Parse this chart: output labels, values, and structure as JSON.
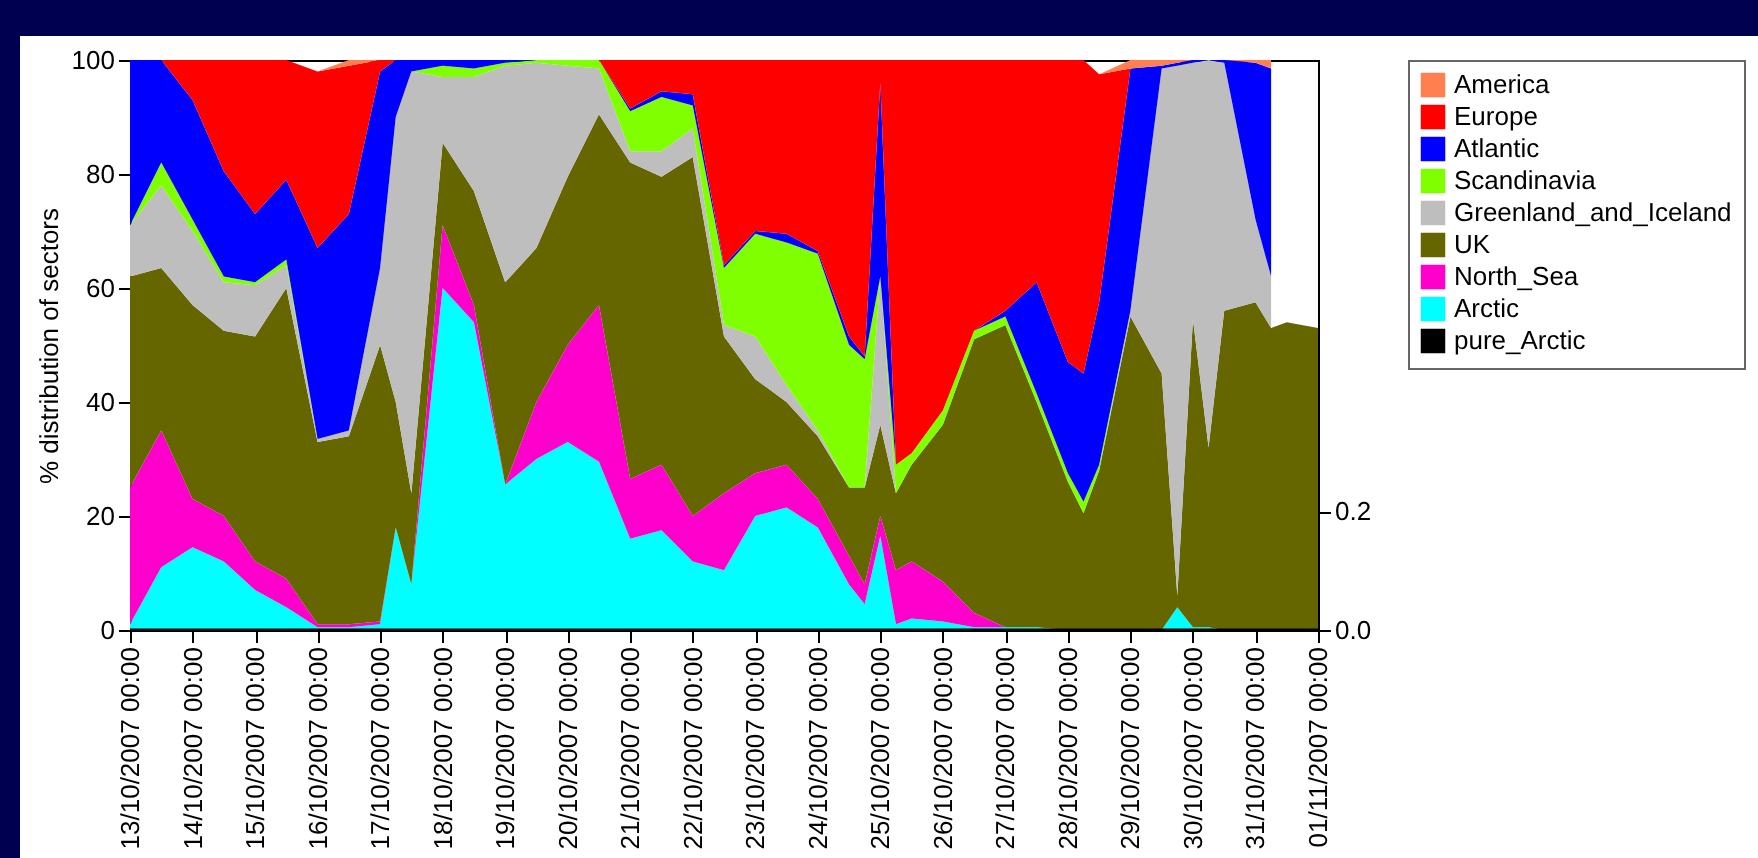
{
  "chart_data": {
    "type": "area",
    "stacked": true,
    "ylabel": "% distribution of sectors",
    "legend": "right",
    "x": [
      "2007-10-13",
      "2007-10-13T12:00",
      "2007-10-14",
      "2007-10-14T12:00",
      "2007-10-15",
      "2007-10-15T12:00",
      "2007-10-16",
      "2007-10-16T12:00",
      "2007-10-17",
      "2007-10-17T06:00",
      "2007-10-17T12:00",
      "2007-10-18",
      "2007-10-18T12:00",
      "2007-10-19",
      "2007-10-19T12:00",
      "2007-10-20",
      "2007-10-20T12:00",
      "2007-10-21",
      "2007-10-21T12:00",
      "2007-10-22",
      "2007-10-22T12:00",
      "2007-10-23",
      "2007-10-23T12:00",
      "2007-10-24",
      "2007-10-24T12:00",
      "2007-10-24T18:00",
      "2007-10-25",
      "2007-10-25T06:00",
      "2007-10-25T12:00",
      "2007-10-26",
      "2007-10-26T12:00",
      "2007-10-27",
      "2007-10-27T12:00",
      "2007-10-28",
      "2007-10-28T06:00",
      "2007-10-28T12:00",
      "2007-10-29",
      "2007-10-29T12:00",
      "2007-10-29T18:00",
      "2007-10-30",
      "2007-10-30T06:00",
      "2007-10-30T12:00",
      "2007-10-31",
      "2007-10-31T06:00",
      "2007-10-31T12:00",
      "2007-11-01"
    ],
    "series": [
      {
        "name": "Arctic",
        "type": "area",
        "color": "#00ffff",
        "values": [
          1,
          11,
          14.5,
          12,
          7,
          4,
          0.5,
          0.5,
          1,
          18,
          8,
          60,
          54,
          25.5,
          30,
          33,
          29.5,
          16,
          17.5,
          12,
          10.5,
          20,
          21.5,
          18,
          8,
          4.5,
          16.5,
          1,
          2,
          1.5,
          0.5,
          0.5,
          0.5,
          0,
          0,
          0,
          0,
          0,
          4,
          0.5,
          0.5,
          0,
          0,
          0,
          0,
          0
        ]
      },
      {
        "name": "North_Sea",
        "type": "area",
        "color": "#ff00cc",
        "values": [
          24,
          24,
          8.5,
          8,
          5,
          5,
          0.5,
          0.5,
          0.5,
          0,
          0,
          11,
          3,
          0,
          10,
          17,
          27.5,
          10.5,
          11.5,
          8,
          13.5,
          7.5,
          7.5,
          5,
          5,
          3.5,
          3.5,
          9.5,
          10,
          7,
          2.5,
          0,
          0,
          0,
          0,
          0,
          0,
          0,
          0,
          0,
          0,
          0,
          0,
          0,
          0,
          0
        ]
      },
      {
        "name": "UK",
        "type": "area",
        "color": "#666600",
        "values": [
          37,
          28.5,
          34,
          32.5,
          39.5,
          51,
          32,
          33,
          48.5,
          22,
          16,
          14.5,
          20,
          35.5,
          27,
          29.5,
          33.5,
          55.5,
          50.5,
          63,
          27.5,
          16.5,
          11,
          11,
          12,
          17,
          16,
          13.5,
          17,
          27.5,
          48,
          53,
          39.5,
          26,
          20.5,
          28,
          55,
          45,
          2,
          54,
          31.5,
          56,
          57.5,
          53,
          54,
          53
        ]
      },
      {
        "name": "Greenland_and_Iceland",
        "type": "area",
        "color": "#bebebe",
        "values": [
          9,
          14.5,
          13,
          8.5,
          9,
          4,
          0.5,
          1,
          13.5,
          50,
          74,
          11.5,
          20,
          38,
          32.5,
          19.5,
          8,
          2,
          4.5,
          5,
          2,
          7.5,
          3,
          1,
          0,
          0,
          26,
          0,
          0,
          0,
          0,
          0,
          0,
          0,
          0,
          0,
          1,
          53.5,
          93,
          45,
          68,
          43.5,
          14.5,
          9,
          null,
          null
        ]
      },
      {
        "name": "Scandinavia",
        "type": "area",
        "color": "#80ff00",
        "values": [
          0,
          4,
          2,
          1,
          0.5,
          1,
          0,
          0,
          0,
          0,
          0,
          2,
          1.5,
          0.5,
          0.5,
          1,
          1.5,
          7,
          9.5,
          4,
          10,
          18,
          25,
          31,
          25,
          22.5,
          0,
          5,
          2,
          2.5,
          1.5,
          1.5,
          1.5,
          1.5,
          2,
          1,
          0,
          0,
          0,
          0,
          0,
          0,
          0,
          0,
          null,
          null
        ]
      },
      {
        "name": "Atlantic",
        "type": "area",
        "color": "#0000ff",
        "values": [
          29,
          18,
          21,
          18.5,
          12,
          14,
          33.5,
          38,
          34.5,
          10,
          2,
          1,
          1.5,
          0.5,
          0,
          0,
          0,
          0.5,
          1,
          2,
          0.5,
          0.5,
          1.5,
          0.5,
          1.5,
          0.5,
          34,
          0,
          0,
          0,
          0,
          1,
          19.5,
          19.5,
          22.5,
          28.5,
          42.5,
          0.5,
          0.5,
          0.5,
          0,
          0.5,
          27.5,
          36.5,
          null,
          null
        ]
      },
      {
        "name": "Europe",
        "type": "area",
        "color": "#ff0000",
        "values": [
          0,
          0,
          7,
          19.5,
          27,
          21,
          31,
          26,
          2,
          0,
          0,
          0,
          0,
          0,
          0,
          0,
          0,
          8.5,
          5.5,
          6,
          36,
          30,
          30.5,
          33.5,
          48.5,
          52,
          4,
          71,
          69,
          61.5,
          47.5,
          44,
          39,
          53,
          55,
          40,
          0,
          0,
          0,
          0,
          0,
          0,
          0,
          0,
          null,
          null
        ]
      },
      {
        "name": "America",
        "type": "area",
        "color": "#ff7f50",
        "values": [
          0,
          0,
          0,
          0,
          0,
          0,
          0,
          1,
          0,
          0,
          0,
          0,
          0,
          0,
          0,
          0,
          0,
          0,
          0,
          0,
          0,
          0,
          0,
          0,
          0,
          0,
          0,
          0,
          0,
          0,
          0,
          0,
          0,
          0,
          0,
          0,
          1.5,
          1,
          0.5,
          0,
          0,
          0,
          0.5,
          1.5,
          null,
          null
        ]
      },
      {
        "name": "pure_Arctic",
        "type": "line",
        "axis": "y2",
        "color": "#000000",
        "values": [
          0,
          0,
          0,
          0,
          0,
          0,
          0,
          0,
          0,
          0,
          0,
          0,
          0,
          0,
          0,
          0,
          0,
          0,
          0,
          0,
          0,
          0,
          0,
          0,
          0,
          0,
          0,
          0,
          0,
          0,
          0,
          0,
          0,
          0,
          0,
          0,
          0,
          0,
          0,
          0,
          0,
          0,
          0,
          0,
          0,
          0
        ]
      }
    ],
    "xlim": [
      "2007-10-13",
      "2007-11-01"
    ],
    "xticks": [
      {
        "value": "2007-10-13",
        "label": "13/10/2007 00:00"
      },
      {
        "value": "2007-10-14",
        "label": "14/10/2007 00:00"
      },
      {
        "value": "2007-10-15",
        "label": "15/10/2007 00:00"
      },
      {
        "value": "2007-10-16",
        "label": "16/10/2007 00:00"
      },
      {
        "value": "2007-10-17",
        "label": "17/10/2007 00:00"
      },
      {
        "value": "2007-10-18",
        "label": "18/10/2007 00:00"
      },
      {
        "value": "2007-10-19",
        "label": "19/10/2007 00:00"
      },
      {
        "value": "2007-10-20",
        "label": "20/10/2007 00:00"
      },
      {
        "value": "2007-10-21",
        "label": "21/10/2007 00:00"
      },
      {
        "value": "2007-10-22",
        "label": "22/10/2007 00:00"
      },
      {
        "value": "2007-10-23",
        "label": "23/10/2007 00:00"
      },
      {
        "value": "2007-10-24",
        "label": "24/10/2007 00:00"
      },
      {
        "value": "2007-10-25",
        "label": "25/10/2007 00:00"
      },
      {
        "value": "2007-10-26",
        "label": "26/10/2007 00:00"
      },
      {
        "value": "2007-10-27",
        "label": "27/10/2007 00:00"
      },
      {
        "value": "2007-10-28",
        "label": "28/10/2007 00:00"
      },
      {
        "value": "2007-10-29",
        "label": "29/10/2007 00:00"
      },
      {
        "value": "2007-10-30",
        "label": "30/10/2007 00:00"
      },
      {
        "value": "2007-10-31",
        "label": "31/10/2007 00:00"
      },
      {
        "value": "2007-11-01",
        "label": "01/11/2007 00:00"
      }
    ],
    "ylim": [
      0,
      100
    ],
    "yticks": [
      0,
      20,
      40,
      60,
      80,
      100
    ],
    "y2lim": [
      0,
      0.96
    ],
    "y2ticks": [
      {
        "value": 0,
        "label": "0.0"
      },
      0.2
    ]
  }
}
